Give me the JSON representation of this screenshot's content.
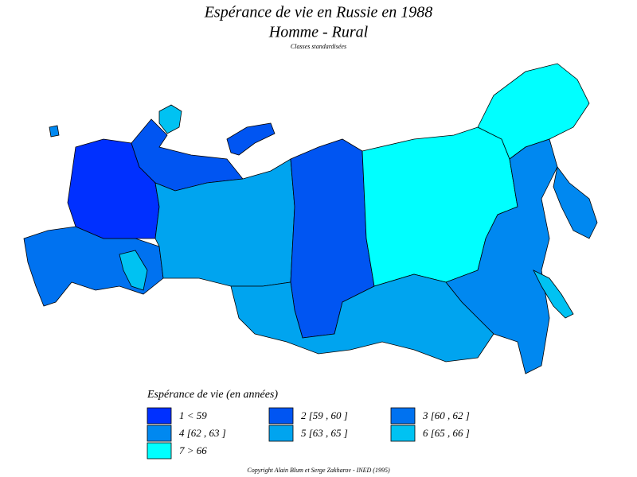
{
  "title": "Espérance de vie en Russie en 1988",
  "subtitle": "Homme - Rural",
  "note": "Classes standardisées",
  "legend": {
    "title": "Espérance de vie (en années)",
    "classes": [
      {
        "label": "1 < 59",
        "color": "#0030ff"
      },
      {
        "label": "2 [59 , 60 ]",
        "color": "#0055f2"
      },
      {
        "label": "3 [60 , 62 ]",
        "color": "#0072f0"
      },
      {
        "label": "4 [62 , 63 ]",
        "color": "#0088f0"
      },
      {
        "label": "5 [63 , 65 ]",
        "color": "#00a4ef"
      },
      {
        "label": "6 [65 , 66 ]",
        "color": "#00c2f2"
      },
      {
        "label": "7 > 66",
        "color": "#00ffff"
      }
    ]
  },
  "copyright": "Copyright Alain Blum et Serge Zakharov - INED (1995)"
}
